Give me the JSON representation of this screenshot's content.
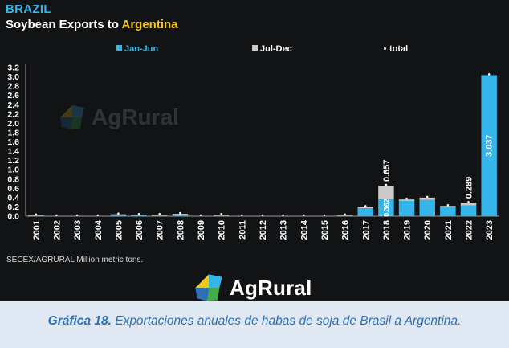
{
  "header": {
    "country": "BRAZIL",
    "subtitle_prefix": "Soybean Exports to ",
    "subtitle_highlight": "Argentina"
  },
  "legend": {
    "jan_jun": "Jan-Jun",
    "jul_dec": "Jul-Dec",
    "total": "total"
  },
  "colors": {
    "background": "#111315",
    "jan_jun": "#35b6ea",
    "jul_dec": "#c9c9c9",
    "highlight": "#f5c518"
  },
  "source": "SECEX/AGRURAL  Million metric tons.",
  "watermark": "AgRural",
  "logo": "AgRural",
  "caption": {
    "lead": "Gráfica 18.",
    "text": " Exportaciones anuales de habas de soja de Brasil a Argentina."
  },
  "chart_data": {
    "type": "bar",
    "stacked": true,
    "categories": [
      "2001",
      "2002",
      "2003",
      "2004",
      "2005",
      "2006",
      "2007",
      "2008",
      "2009",
      "2010",
      "2011",
      "2012",
      "2013",
      "2014",
      "2015",
      "2016",
      "2017",
      "2018",
      "2019",
      "2020",
      "2021",
      "2022",
      "2023"
    ],
    "series": [
      {
        "name": "Jan-Jun",
        "color": "#35b6ea",
        "values": [
          0.01,
          0.0,
          0.0,
          0.0,
          0.02,
          0.02,
          0.01,
          0.03,
          0.0,
          0.01,
          0.0,
          0.0,
          0.0,
          0.0,
          0.0,
          0.01,
          0.17,
          0.362,
          0.33,
          0.35,
          0.2,
          0.23,
          3.037
        ]
      },
      {
        "name": "Jul-Dec",
        "color": "#c9c9c9",
        "values": [
          0.01,
          0.0,
          0.0,
          0.0,
          0.02,
          0.01,
          0.02,
          0.02,
          0.0,
          0.02,
          0.0,
          0.0,
          0.0,
          0.0,
          0.0,
          0.01,
          0.03,
          0.295,
          0.03,
          0.05,
          0.02,
          0.059,
          0.0
        ]
      }
    ],
    "total": [
      0.02,
      0.0,
      0.0,
      0.0,
      0.04,
      0.03,
      0.03,
      0.05,
      0.0,
      0.03,
      0.0,
      0.0,
      0.0,
      0.0,
      0.0,
      0.02,
      0.2,
      0.657,
      0.36,
      0.4,
      0.22,
      0.289,
      3.037
    ],
    "data_labels": [
      {
        "category": "2018",
        "series": "total",
        "text": "0.657"
      },
      {
        "category": "2018",
        "series": "Jan-Jun",
        "text": "0.362"
      },
      {
        "category": "2022",
        "series": "total",
        "text": "0.289"
      },
      {
        "category": "2023",
        "series": "Jan-Jun",
        "text": "3.037"
      }
    ],
    "yticks": [
      "0.0",
      "0.2",
      "0.4",
      "0.6",
      "0.8",
      "1.0",
      "1.2",
      "1.4",
      "1.6",
      "1.8",
      "2.0",
      "2.2",
      "2.4",
      "2.6",
      "2.8",
      "3.0",
      "3.2"
    ],
    "ylim": [
      0,
      3.2
    ],
    "ylabel": "",
    "xlabel": "",
    "legend_position": "top",
    "grid": false
  }
}
